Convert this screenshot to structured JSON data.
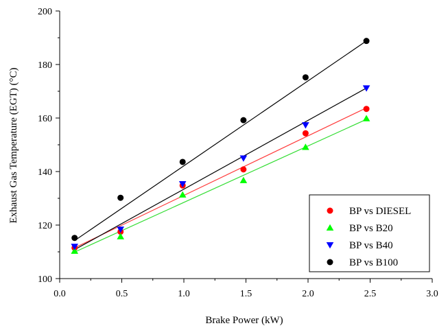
{
  "chart_data": {
    "type": "scatter",
    "title": "",
    "xlabel": "Brake Power (kW)",
    "ylabel": "Exhaust Gas Temperature (EGT) (°C)",
    "xlim": [
      0.0,
      3.0
    ],
    "ylim": [
      100,
      200
    ],
    "xticks": [
      "0.0",
      "0.5",
      "1.0",
      "1.5",
      "2.0",
      "2.5",
      "3.0"
    ],
    "yticks": [
      "100",
      "120",
      "140",
      "160",
      "180",
      "200"
    ],
    "grid": false,
    "legend_position": "bottom-right",
    "series": [
      {
        "name": "BP vs DIESEL",
        "marker": "circle",
        "color": "#ff0000",
        "x": [
          0.12,
          0.49,
          0.99,
          1.48,
          1.98,
          2.47
        ],
        "y": [
          111.5,
          117.5,
          134.8,
          140.8,
          154.3,
          163.4
        ],
        "fit": [
          [
            0.12,
            111.5
          ],
          [
            2.47,
            163.8
          ]
        ]
      },
      {
        "name": "BP vs B20",
        "marker": "triangle-up",
        "color": "#00ff00",
        "x": [
          0.12,
          0.49,
          0.99,
          1.48,
          1.98,
          2.47
        ],
        "y": [
          110.3,
          115.7,
          131.3,
          136.7,
          149.1,
          159.8
        ],
        "fit": [
          [
            0.12,
            109.9
          ],
          [
            2.47,
            159.5
          ]
        ]
      },
      {
        "name": "BP vs B40",
        "marker": "triangle-down",
        "color": "#0000ff",
        "x": [
          0.12,
          0.49,
          0.99,
          1.48,
          1.98,
          2.47
        ],
        "y": [
          112.0,
          118.4,
          135.4,
          145.0,
          157.4,
          171.2
        ],
        "fit": [
          [
            0.12,
            110.8
          ],
          [
            2.47,
            171.2
          ]
        ]
      },
      {
        "name": "BP vs B100",
        "marker": "circle",
        "color": "#000000",
        "x": [
          0.12,
          0.49,
          0.99,
          1.48,
          1.98,
          2.47
        ],
        "y": [
          115.2,
          130.2,
          143.6,
          159.2,
          175.2,
          188.8
        ],
        "fit": [
          [
            0.12,
            114.2
          ],
          [
            2.47,
            188.8
          ]
        ]
      }
    ]
  }
}
